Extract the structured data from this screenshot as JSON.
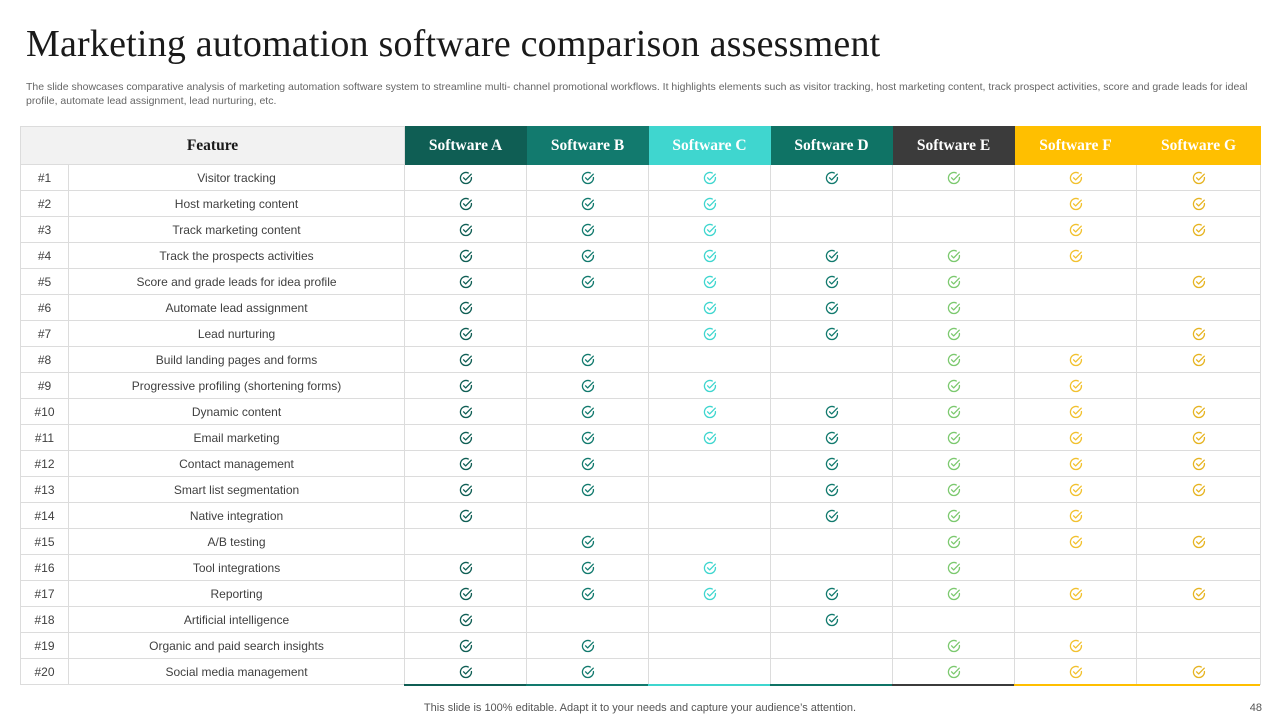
{
  "title": "Marketing automation software comparison assessment",
  "subtitle": "The slide showcases comparative analysis of marketing automation software system to streamline multi- channel promotional workflows. It highlights elements such as visitor tracking, host marketing content, track prospect activities, score and grade leads for ideal profile, automate lead assignment, lead nurturing, etc.",
  "table": {
    "feature_header": "Feature",
    "software": [
      {
        "name": "Software A",
        "color": "#0f5e54",
        "check_color": "#0f5e54"
      },
      {
        "name": "Software B",
        "color": "#127a6e",
        "check_color": "#127a6e"
      },
      {
        "name": "Software C",
        "color": "#3fd6cf",
        "check_color": "#3fd6cf"
      },
      {
        "name": "Software D",
        "color": "#0f7365",
        "check_color": "#127a6e"
      },
      {
        "name": "Software E",
        "color": "#3b3b3b",
        "check_color": "#7cc96f"
      },
      {
        "name": "Software F",
        "color": "#ffbf00",
        "check_color": "#f2c12e"
      },
      {
        "name": "Software G",
        "color": "#ffbf00",
        "check_color": "#e6b422"
      }
    ],
    "rows": [
      {
        "num": "#1",
        "feature": "Visitor tracking",
        "checks": [
          true,
          true,
          true,
          true,
          true,
          true,
          true
        ]
      },
      {
        "num": "#2",
        "feature": "Host marketing content",
        "checks": [
          true,
          true,
          true,
          false,
          false,
          true,
          true
        ]
      },
      {
        "num": "#3",
        "feature": "Track marketing content",
        "checks": [
          true,
          true,
          true,
          false,
          false,
          true,
          true
        ]
      },
      {
        "num": "#4",
        "feature": "Track the prospects activities",
        "checks": [
          true,
          true,
          true,
          true,
          true,
          true,
          false
        ]
      },
      {
        "num": "#5",
        "feature": "Score and grade leads for idea profile",
        "checks": [
          true,
          true,
          true,
          true,
          true,
          false,
          true
        ]
      },
      {
        "num": "#6",
        "feature": "Automate lead assignment",
        "checks": [
          true,
          false,
          true,
          true,
          true,
          false,
          false
        ]
      },
      {
        "num": "#7",
        "feature": "Lead nurturing",
        "checks": [
          true,
          false,
          true,
          true,
          true,
          false,
          true
        ]
      },
      {
        "num": "#8",
        "feature": "Build landing pages and forms",
        "checks": [
          true,
          true,
          false,
          false,
          true,
          true,
          true
        ]
      },
      {
        "num": "#9",
        "feature": "Progressive profiling (shortening forms)",
        "checks": [
          true,
          true,
          true,
          false,
          true,
          true,
          false
        ]
      },
      {
        "num": "#10",
        "feature": "Dynamic content",
        "checks": [
          true,
          true,
          true,
          true,
          true,
          true,
          true
        ]
      },
      {
        "num": "#11",
        "feature": "Email marketing",
        "checks": [
          true,
          true,
          true,
          true,
          true,
          true,
          true
        ]
      },
      {
        "num": "#12",
        "feature": "Contact management",
        "checks": [
          true,
          true,
          false,
          true,
          true,
          true,
          true
        ]
      },
      {
        "num": "#13",
        "feature": "Smart list segmentation",
        "checks": [
          true,
          true,
          false,
          true,
          true,
          true,
          true
        ]
      },
      {
        "num": "#14",
        "feature": "Native integration",
        "checks": [
          true,
          false,
          false,
          true,
          true,
          true,
          false
        ]
      },
      {
        "num": "#15",
        "feature": "A/B testing",
        "checks": [
          false,
          true,
          false,
          false,
          true,
          true,
          true
        ]
      },
      {
        "num": "#16",
        "feature": "Tool integrations",
        "checks": [
          true,
          true,
          true,
          false,
          true,
          false,
          false
        ]
      },
      {
        "num": "#17",
        "feature": "Reporting",
        "checks": [
          true,
          true,
          true,
          true,
          true,
          true,
          true
        ]
      },
      {
        "num": "#18",
        "feature": "Artificial intelligence",
        "checks": [
          true,
          false,
          false,
          true,
          false,
          false,
          false
        ]
      },
      {
        "num": "#19",
        "feature": "Organic and paid search insights",
        "checks": [
          true,
          true,
          false,
          false,
          true,
          true,
          false
        ]
      },
      {
        "num": "#20",
        "feature": "Social media management",
        "checks": [
          true,
          true,
          false,
          false,
          true,
          true,
          true
        ]
      }
    ]
  },
  "icons": {
    "check": "check-circle-icon"
  },
  "footer": "This slide is 100% editable. Adapt it to your needs and capture your audience’s attention.",
  "page_number": "48"
}
